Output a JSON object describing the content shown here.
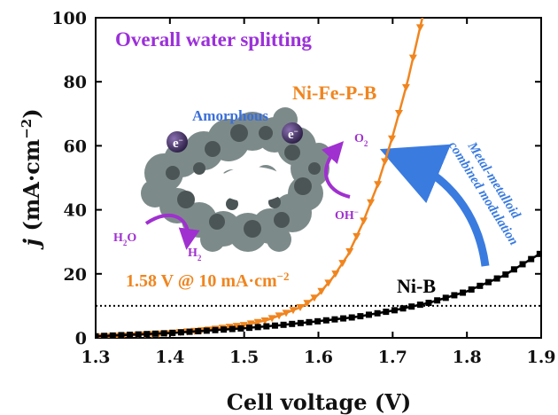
{
  "chart_data": {
    "type": "line",
    "title": "Overall water splitting",
    "xlabel": "Cell voltage (V)",
    "ylabel_italic": "j",
    "ylabel_rest": " (mA·cm",
    "ylabel_sup": "−2",
    "ylabel_close": ")",
    "xlim": [
      1.3,
      1.9
    ],
    "ylim": [
      0,
      100
    ],
    "x_ticks": [
      "1.3",
      "1.4",
      "1.5",
      "1.6",
      "1.7",
      "1.8",
      "1.9"
    ],
    "y_ticks": [
      "0",
      "20",
      "40",
      "60",
      "80",
      "100"
    ],
    "reference_line": {
      "y": 10,
      "style": "dotted"
    },
    "series": [
      {
        "name": "Ni-Fe-P-B",
        "color": "#f0851f",
        "marker": "triangle-down",
        "x": [
          1.3,
          1.35,
          1.4,
          1.45,
          1.5,
          1.53,
          1.55,
          1.57,
          1.58,
          1.6,
          1.62,
          1.64,
          1.66,
          1.68,
          1.7,
          1.72,
          1.74
        ],
        "y": [
          0.3,
          0.8,
          1.5,
          2.5,
          4.0,
          5.5,
          7.2,
          9.0,
          10.0,
          13.5,
          19.0,
          26.0,
          36.0,
          48.0,
          63.0,
          80.0,
          100.0
        ]
      },
      {
        "name": "Ni-B",
        "color": "#000000",
        "marker": "square",
        "x": [
          1.3,
          1.4,
          1.5,
          1.55,
          1.6,
          1.65,
          1.7,
          1.75,
          1.8,
          1.85,
          1.9
        ],
        "y": [
          0.5,
          1.5,
          3.0,
          4.0,
          5.2,
          6.5,
          8.5,
          11.0,
          14.5,
          19.5,
          26.5
        ]
      }
    ]
  },
  "annotations": {
    "onset": "1.58 V @ 10 mA·cm",
    "onset_sup": "−2",
    "modulation_line1": "Metal-metalloid",
    "modulation_line2": "combined modulation",
    "amorphous": "Amorphous",
    "electron": "e",
    "electron_sup": "−",
    "h2o_main": "H",
    "h2o_sub": "2",
    "h2o_end": "O",
    "h2_main": "H",
    "h2_sub": "2",
    "o2_main": "O",
    "o2_sub": "2",
    "oh_main": "OH",
    "oh_sup": "−"
  },
  "colors": {
    "title": "#9b30d9",
    "arrow": "#3a7be0",
    "inset_arrows": "#a030d0",
    "inset_text": "#3a6fd8",
    "ni_fe_p_b": "#f0851f",
    "ni_b": "#000000"
  }
}
